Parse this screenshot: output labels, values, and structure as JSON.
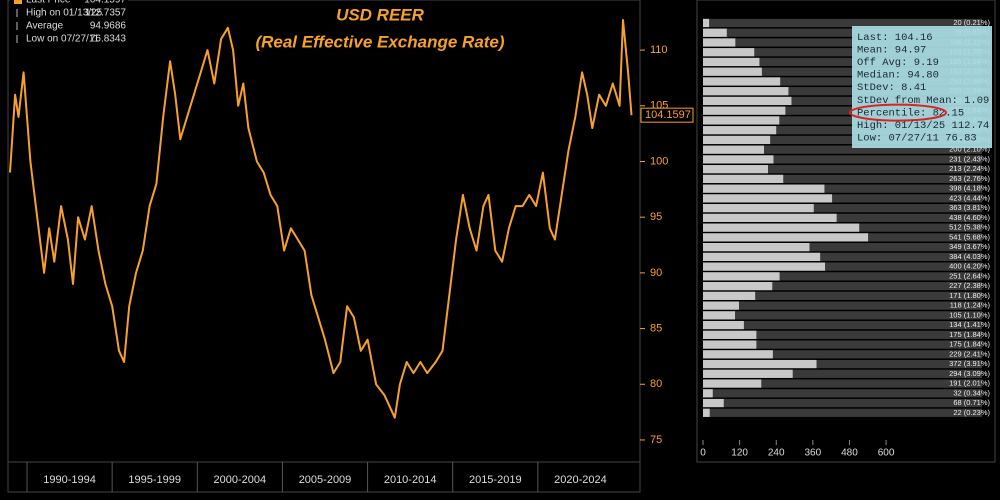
{
  "chart_data": [
    {
      "type": "line",
      "title": "USD REER",
      "subtitle": "(Real Effective Exchange Rate)",
      "x": [
        1989.0,
        1989.3,
        1989.5,
        1989.8,
        1990.2,
        1990.6,
        1991.0,
        1991.3,
        1991.6,
        1992.0,
        1992.4,
        1992.7,
        1993.0,
        1993.4,
        1993.8,
        1994.2,
        1994.6,
        1995.0,
        1995.4,
        1995.7,
        1996.0,
        1996.4,
        1996.8,
        1997.2,
        1997.6,
        1998.0,
        1998.4,
        1998.7,
        1999.0,
        1999.4,
        1999.8,
        2000.2,
        2000.6,
        2001.0,
        2001.4,
        2001.8,
        2002.1,
        2002.4,
        2002.7,
        2003.0,
        2003.5,
        2003.9,
        2004.3,
        2004.7,
        2005.1,
        2005.5,
        2005.9,
        2006.3,
        2006.7,
        2007.1,
        2007.5,
        2008.0,
        2008.4,
        2008.8,
        2009.2,
        2009.6,
        2010.0,
        2010.5,
        2011.0,
        2011.6,
        2011.9,
        2012.3,
        2012.7,
        2013.1,
        2013.5,
        2014.0,
        2014.4,
        2014.8,
        2015.2,
        2015.6,
        2016.0,
        2016.4,
        2016.8,
        2017.1,
        2017.5,
        2017.9,
        2018.3,
        2018.7,
        2019.1,
        2019.5,
        2019.9,
        2020.3,
        2020.7,
        2021.0,
        2021.4,
        2021.8,
        2022.2,
        2022.6,
        2022.9,
        2023.2,
        2023.6,
        2024.0,
        2024.4,
        2024.8,
        2025.0,
        2025.3,
        2025.5
      ],
      "series": [
        {
          "name": "Last Price",
          "color": "#f7a12c",
          "last": 104.1597,
          "values": [
            99,
            106,
            104,
            108,
            100,
            95,
            90,
            94,
            91,
            96,
            93,
            89,
            95,
            93,
            96,
            92,
            89,
            87,
            83,
            82,
            87,
            90,
            92,
            96,
            98,
            104,
            109,
            106,
            102,
            104,
            106,
            108,
            110,
            107,
            111,
            112,
            110,
            105,
            107,
            103,
            100,
            99,
            97,
            96,
            92,
            94,
            93,
            92,
            88,
            86,
            84,
            81,
            82,
            87,
            86,
            83,
            84,
            80,
            79,
            77,
            80,
            82,
            81,
            82,
            81,
            82,
            83,
            88,
            93,
            97,
            94,
            92,
            96,
            97,
            92,
            91,
            94,
            96,
            96,
            97,
            96,
            99,
            94,
            93,
            97,
            101,
            104,
            108,
            106,
            103,
            106,
            105,
            107,
            105,
            112.7,
            108,
            104.16
          ]
        }
      ],
      "stats": [
        {
          "name": "High on 01/13/25",
          "value": 112.7357
        },
        {
          "name": "Average",
          "value": 94.9686
        },
        {
          "name": "Low on 07/27/11",
          "value": 76.8343
        }
      ],
      "xlim": [
        1989,
        2026
      ],
      "ylim": [
        73.2,
        114.5
      ],
      "yticks": [
        75,
        80,
        85,
        90,
        95,
        100,
        105,
        110
      ],
      "xticks": [
        {
          "value": 1990,
          "label": "1990-1994"
        },
        {
          "value": 1995,
          "label": "1995-1999"
        },
        {
          "value": 2000,
          "label": "2000-2004"
        },
        {
          "value": 2005,
          "label": "2005-2009"
        },
        {
          "value": 2010,
          "label": "2010-2014"
        },
        {
          "value": 2015,
          "label": "2015-2019"
        },
        {
          "value": 2020,
          "label": "2020-2024"
        }
      ]
    },
    {
      "type": "histogram",
      "bins": [
        77,
        77.875,
        78.75,
        79.625,
        80.5,
        81.375,
        82.25,
        83.125,
        84,
        84.875,
        85.75,
        86.625,
        87.5,
        88.375,
        89.25,
        90.125,
        91,
        91.875,
        92.75,
        93.625,
        94.5,
        95.375,
        96.25,
        97.125,
        98,
        98.875,
        99.75,
        100.625,
        101.5,
        102.375,
        103.25,
        104.125,
        105,
        105.875,
        106.75,
        107.625,
        108.5,
        109.375,
        110.25,
        111.125,
        112,
        112.875
      ],
      "values": [
        22,
        68,
        32,
        191,
        294,
        372,
        229,
        175,
        175,
        134,
        105,
        118,
        171,
        227,
        251,
        400,
        384,
        349,
        541,
        512,
        438,
        363,
        423,
        398,
        263,
        213,
        231,
        200,
        220,
        240,
        250,
        270,
        290,
        280,
        253,
        193,
        185,
        168,
        106,
        78,
        20
      ],
      "value_labels": [
        "22 (0.23%)",
        "68 (0.71%)",
        "32 (0.34%)",
        "191 (2.01%)",
        "294 (3.09%)",
        "372 (3.91%)",
        "229 (2.41%)",
        "175 (1.84%)",
        "175 (1.84%)",
        "134 (1.41%)",
        "105 (1.10%)",
        "118 (1.24%)",
        "171 (1.80%)",
        "227 (2.38%)",
        "251 (2.64%)",
        "400 (4.20%)",
        "384 (4.03%)",
        "349 (3.67%)",
        "541 (5.68%)",
        "512 (5.38%)",
        "438 (4.60%)",
        "363 (3.81%)",
        "423 (4.44%)",
        "398 (4.18%)",
        "263 (2.76%)",
        "213 (2.24%)",
        "231 (2.43%)",
        "200 (2.10%)",
        "220 (2.31%)",
        "240 (2.52%)",
        "250 (2.63%)",
        "270 (2.84%)",
        "290 (3.05%)",
        "280 (2.94%)",
        "253 (2.66%)",
        "193 (2.03%)",
        "185 (1.94%)",
        "168 (1.76%)",
        "106 (1.11%)",
        "78 (0.82%)",
        "20 (0.21%)"
      ],
      "color": "#c8c8c8",
      "xlim": [
        0,
        957
      ],
      "xticks": [
        0,
        120,
        240,
        360,
        480,
        600
      ],
      "stats_box": [
        "Last: 104.16",
        "Mean: 94.97",
        "Off Avg: 9.19",
        "Median: 94.80",
        "StDev: 8.41",
        "StDev from Mean: 1.09",
        "Percentile: 82.15",
        "High: 01/13/25 112.74",
        "Low: 07/27/11 76.83"
      ],
      "highlight_row": 6
    }
  ]
}
